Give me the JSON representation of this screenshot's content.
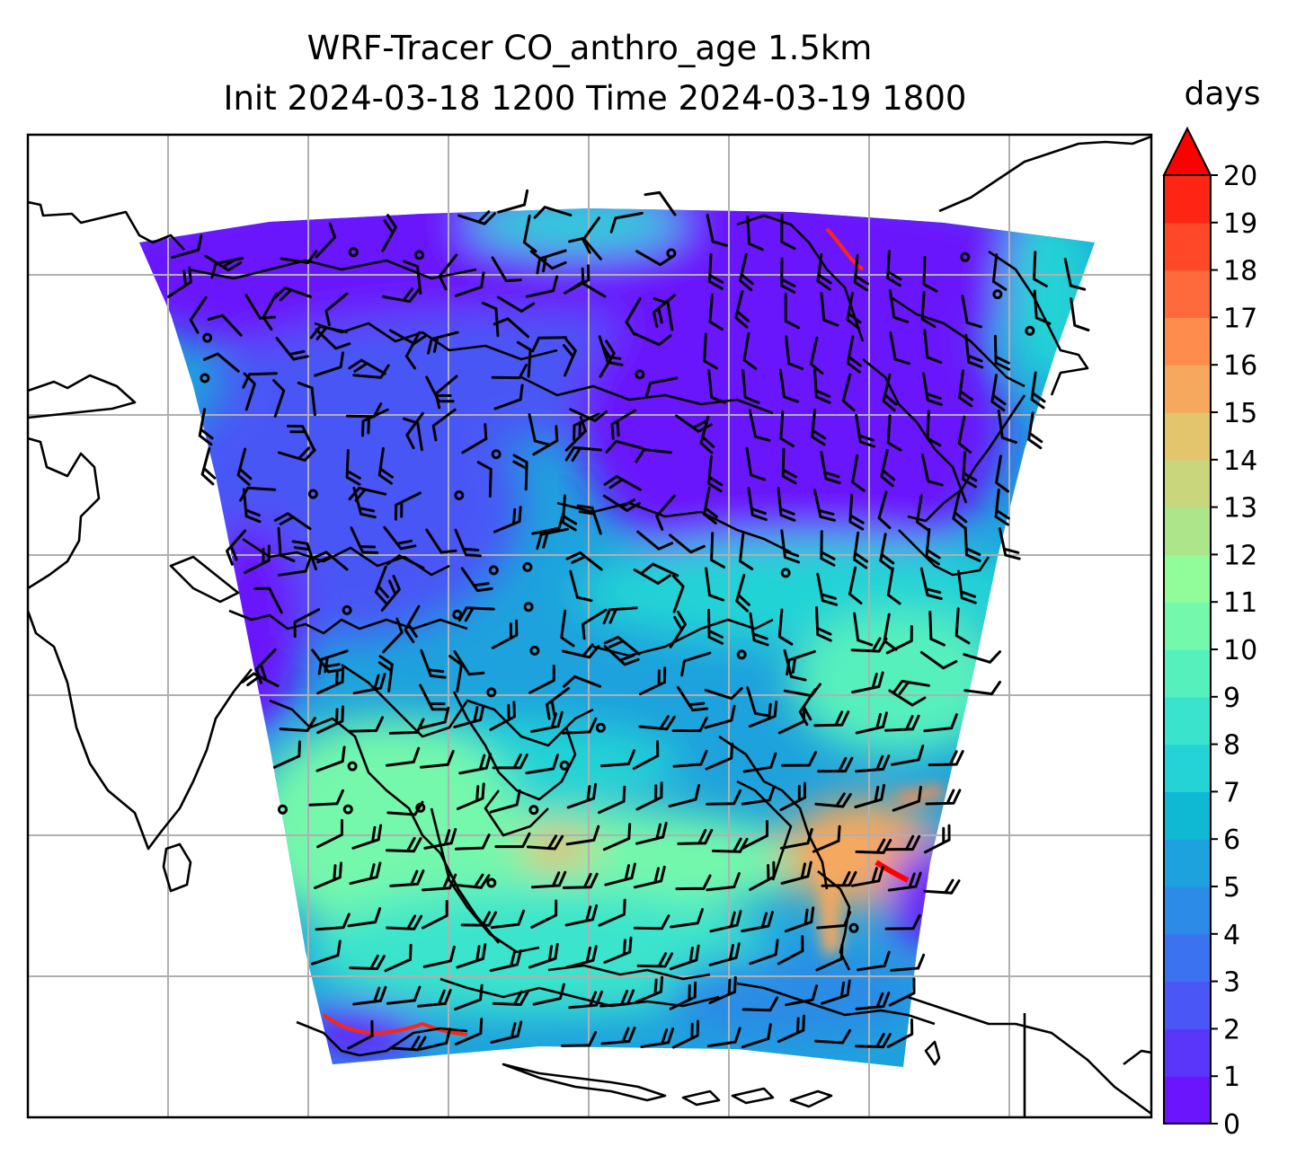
{
  "figure": {
    "title_line1": "WRF-Tracer CO_anthro_age 1.5km",
    "title_line2": "Init 2024-03-18 1200 Time 2024-03-19 1800"
  },
  "colorbar": {
    "unit_label": "days",
    "min": 0,
    "max": 20,
    "step": 1,
    "extend": "max",
    "ticks": [
      "0",
      "1",
      "2",
      "3",
      "4",
      "5",
      "6",
      "7",
      "8",
      "9",
      "10",
      "11",
      "12",
      "13",
      "14",
      "15",
      "16",
      "17",
      "18",
      "19",
      "20"
    ],
    "colors": [
      "#6b15fc",
      "#5a36fb",
      "#4a56f6",
      "#3a72ef",
      "#2c8be6",
      "#1ea2dd",
      "#0fb9d3",
      "#24d3d6",
      "#3ae4cc",
      "#56f0bd",
      "#74f8ac",
      "#91fc9a",
      "#ade58a",
      "#c9d67c",
      "#e2c56d",
      "#f6a95e",
      "#fd8c4d",
      "#ff6a3c",
      "#ff4828",
      "#ff2414"
    ],
    "extend_color": "#ff0000"
  },
  "map": {
    "gridlines": true,
    "coastline_color": "#000000",
    "wind_barb_color": "#000000",
    "field_dominant_colors": {
      "north": "#6b15fc",
      "central": "#1ea2dd",
      "south": "#74f8ac",
      "hotspot": "#f6a95e"
    }
  }
}
